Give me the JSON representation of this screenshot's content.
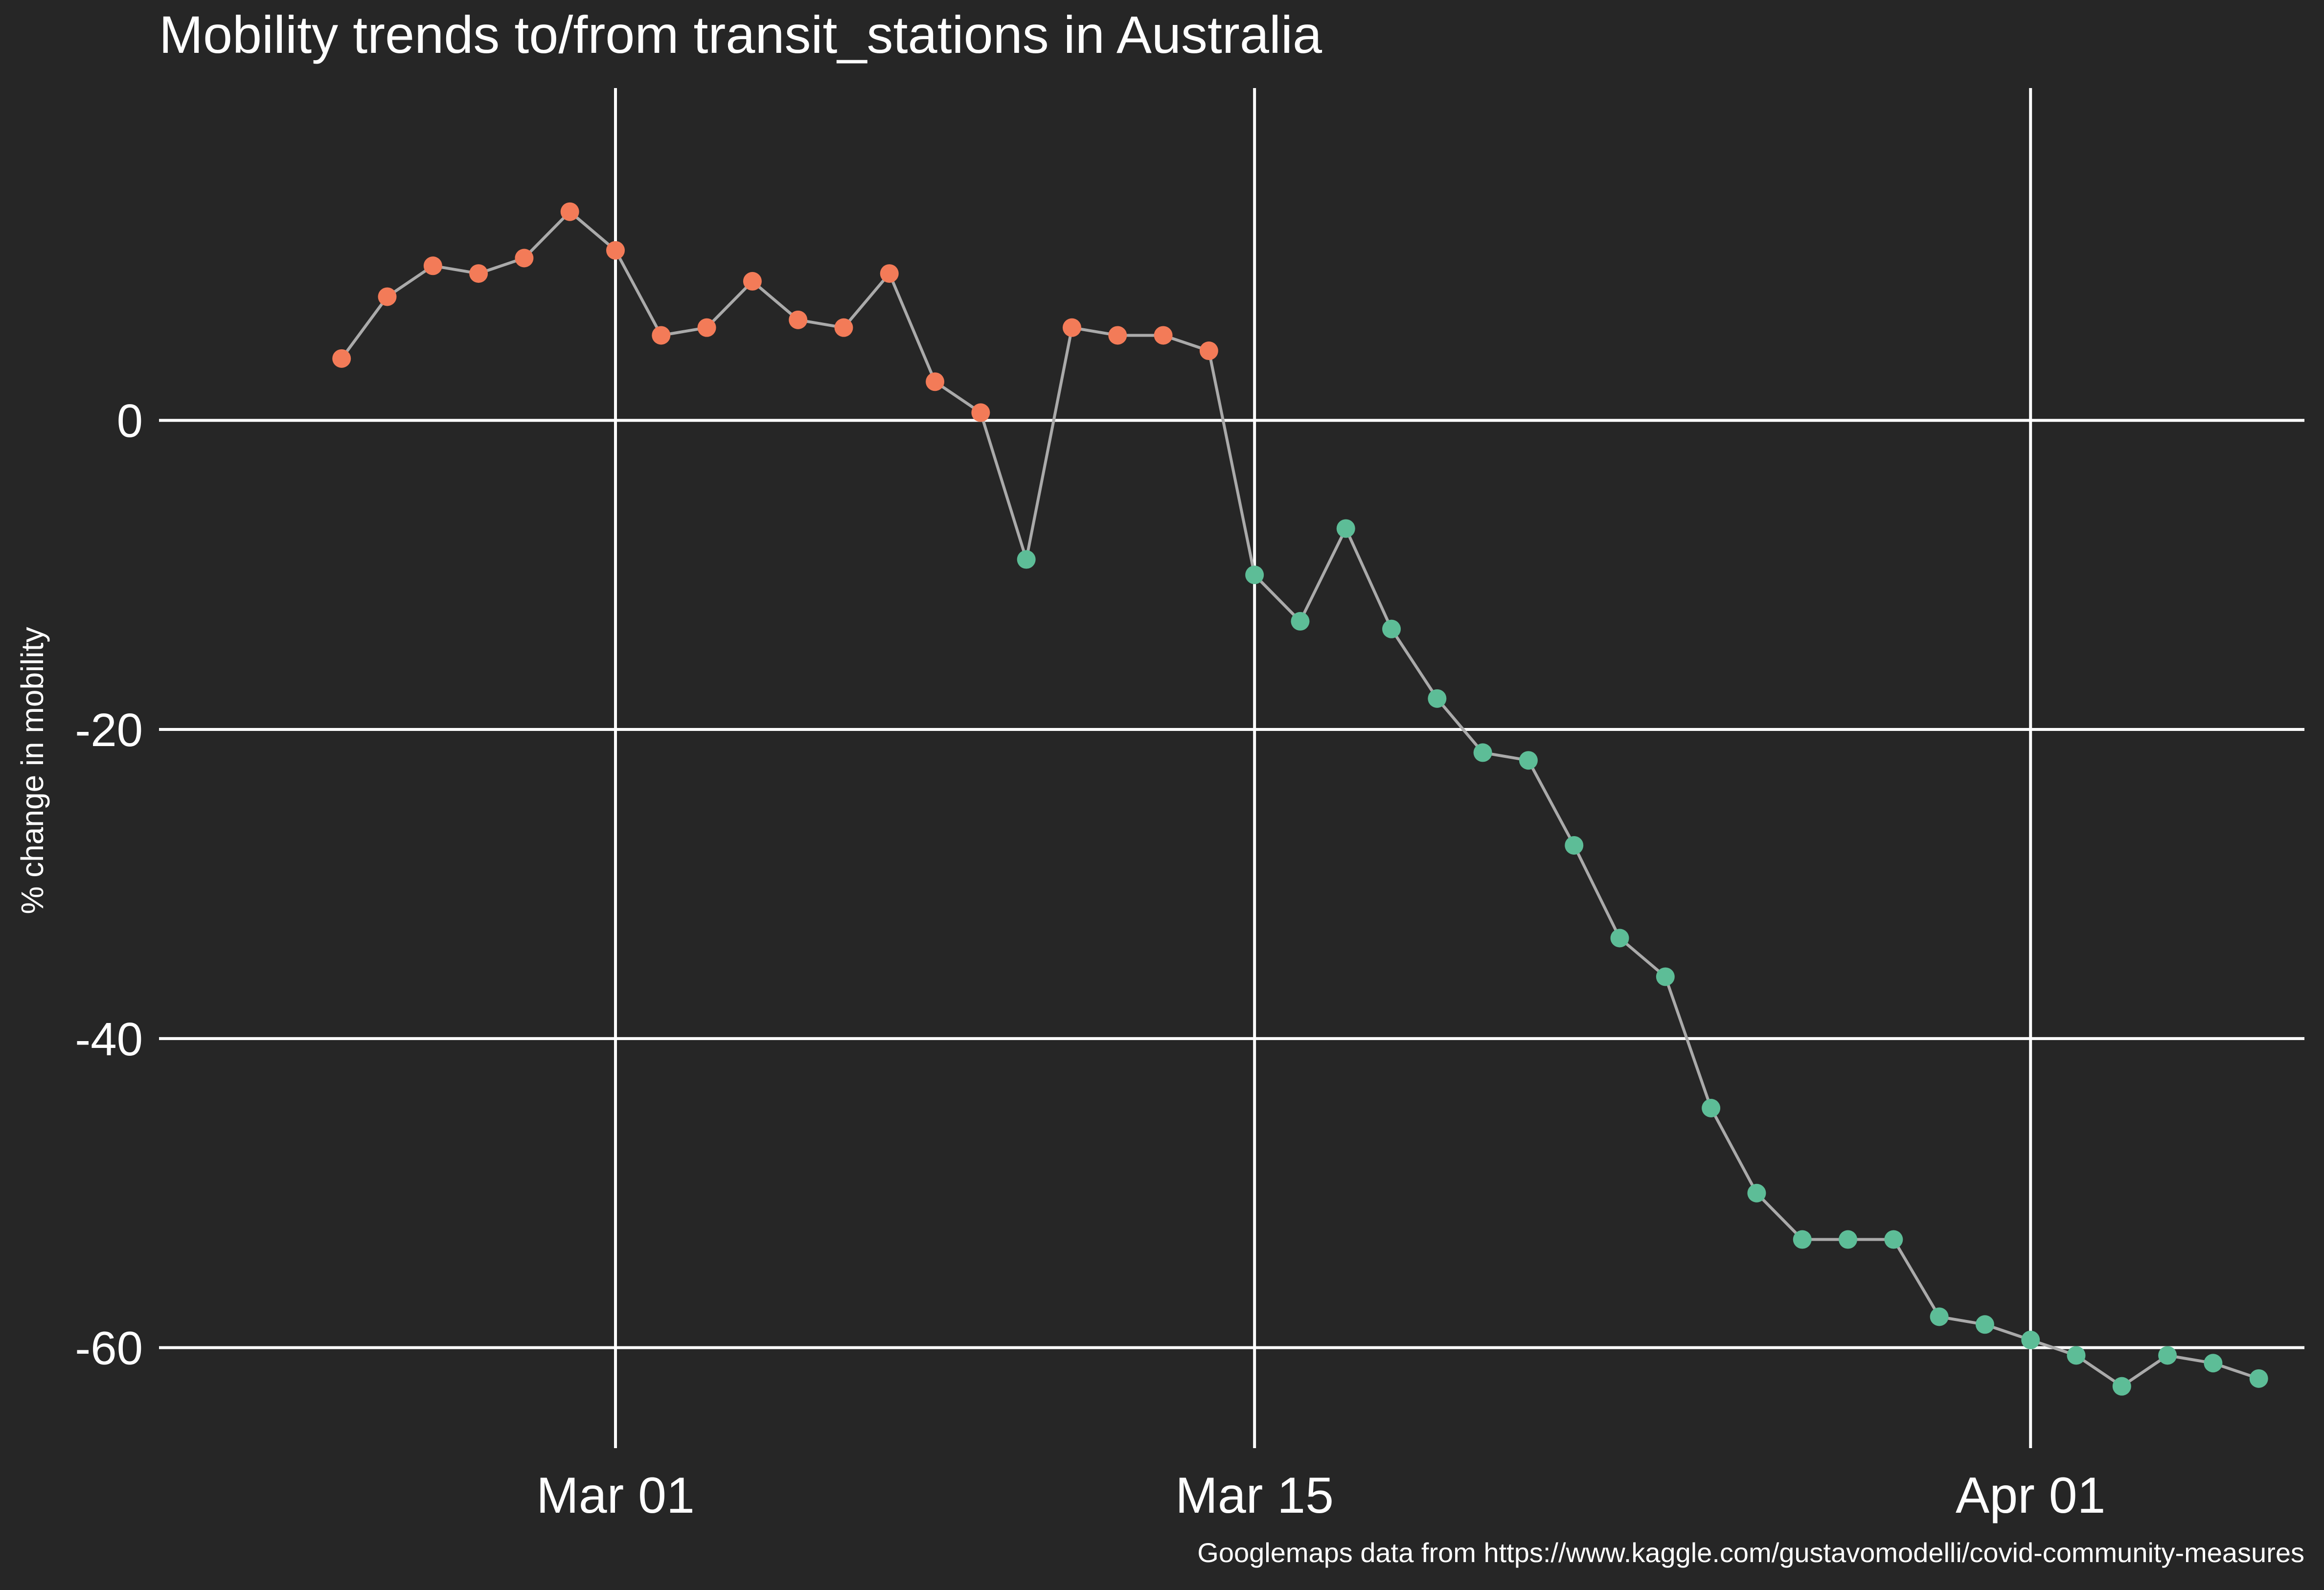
{
  "chart_data": {
    "type": "line",
    "title": "Mobility trends to/from transit_stations in Australia",
    "xlabel": "",
    "ylabel": "% change in mobility",
    "caption": "Googlemaps data from https://www.kaggle.com/gustavomodelli/covid-community-measures",
    "x_ticks": [
      {
        "date": "2020-03-01",
        "label": "Mar 01"
      },
      {
        "date": "2020-03-15",
        "label": "Mar 15"
      },
      {
        "date": "2020-04-01",
        "label": "Apr 01"
      }
    ],
    "y_ticks": [
      0,
      -20,
      -40,
      -60
    ],
    "xlim": [
      "2020-02-20",
      "2020-04-07"
    ],
    "ylim": [
      -66.5,
      21.5
    ],
    "grid": true,
    "legend": "none",
    "colors": {
      "background": "#262626",
      "line": "#aaaaaa",
      "positive_point": "#f37b58",
      "negative_point": "#5dbd97",
      "grid": "#ffffff"
    },
    "series": [
      {
        "points": [
          {
            "x": "2020-02-24",
            "y": 4
          },
          {
            "x": "2020-02-25",
            "y": 8
          },
          {
            "x": "2020-02-26",
            "y": 10
          },
          {
            "x": "2020-02-27",
            "y": 9.5
          },
          {
            "x": "2020-02-28",
            "y": 10.5
          },
          {
            "x": "2020-02-29",
            "y": 13.5
          },
          {
            "x": "2020-03-01",
            "y": 11
          },
          {
            "x": "2020-03-02",
            "y": 5.5
          },
          {
            "x": "2020-03-03",
            "y": 6
          },
          {
            "x": "2020-03-04",
            "y": 9
          },
          {
            "x": "2020-03-05",
            "y": 6.5
          },
          {
            "x": "2020-03-06",
            "y": 6
          },
          {
            "x": "2020-03-07",
            "y": 9.5
          },
          {
            "x": "2020-03-08",
            "y": 2.5
          },
          {
            "x": "2020-03-09",
            "y": 0.5
          },
          {
            "x": "2020-03-10",
            "y": -9
          },
          {
            "x": "2020-03-11",
            "y": 6
          },
          {
            "x": "2020-03-12",
            "y": 5.5
          },
          {
            "x": "2020-03-13",
            "y": 5.5
          },
          {
            "x": "2020-03-14",
            "y": 4.5
          },
          {
            "x": "2020-03-15",
            "y": -10
          },
          {
            "x": "2020-03-16",
            "y": -13
          },
          {
            "x": "2020-03-17",
            "y": -7
          },
          {
            "x": "2020-03-18",
            "y": -13.5
          },
          {
            "x": "2020-03-19",
            "y": -18
          },
          {
            "x": "2020-03-20",
            "y": -21.5
          },
          {
            "x": "2020-03-21",
            "y": -22
          },
          {
            "x": "2020-03-22",
            "y": -27.5
          },
          {
            "x": "2020-03-23",
            "y": -33.5
          },
          {
            "x": "2020-03-24",
            "y": -36
          },
          {
            "x": "2020-03-25",
            "y": -44.5
          },
          {
            "x": "2020-03-26",
            "y": -50
          },
          {
            "x": "2020-03-27",
            "y": -53
          },
          {
            "x": "2020-03-28",
            "y": -53
          },
          {
            "x": "2020-03-29",
            "y": -53
          },
          {
            "x": "2020-03-30",
            "y": -58
          },
          {
            "x": "2020-03-31",
            "y": -58.5
          },
          {
            "x": "2020-04-01",
            "y": -59.5
          },
          {
            "x": "2020-04-02",
            "y": -60.5
          },
          {
            "x": "2020-04-03",
            "y": -62.5
          },
          {
            "x": "2020-04-04",
            "y": -60.5
          },
          {
            "x": "2020-04-05",
            "y": -61
          },
          {
            "x": "2020-04-06",
            "y": -62
          }
        ]
      }
    ]
  }
}
